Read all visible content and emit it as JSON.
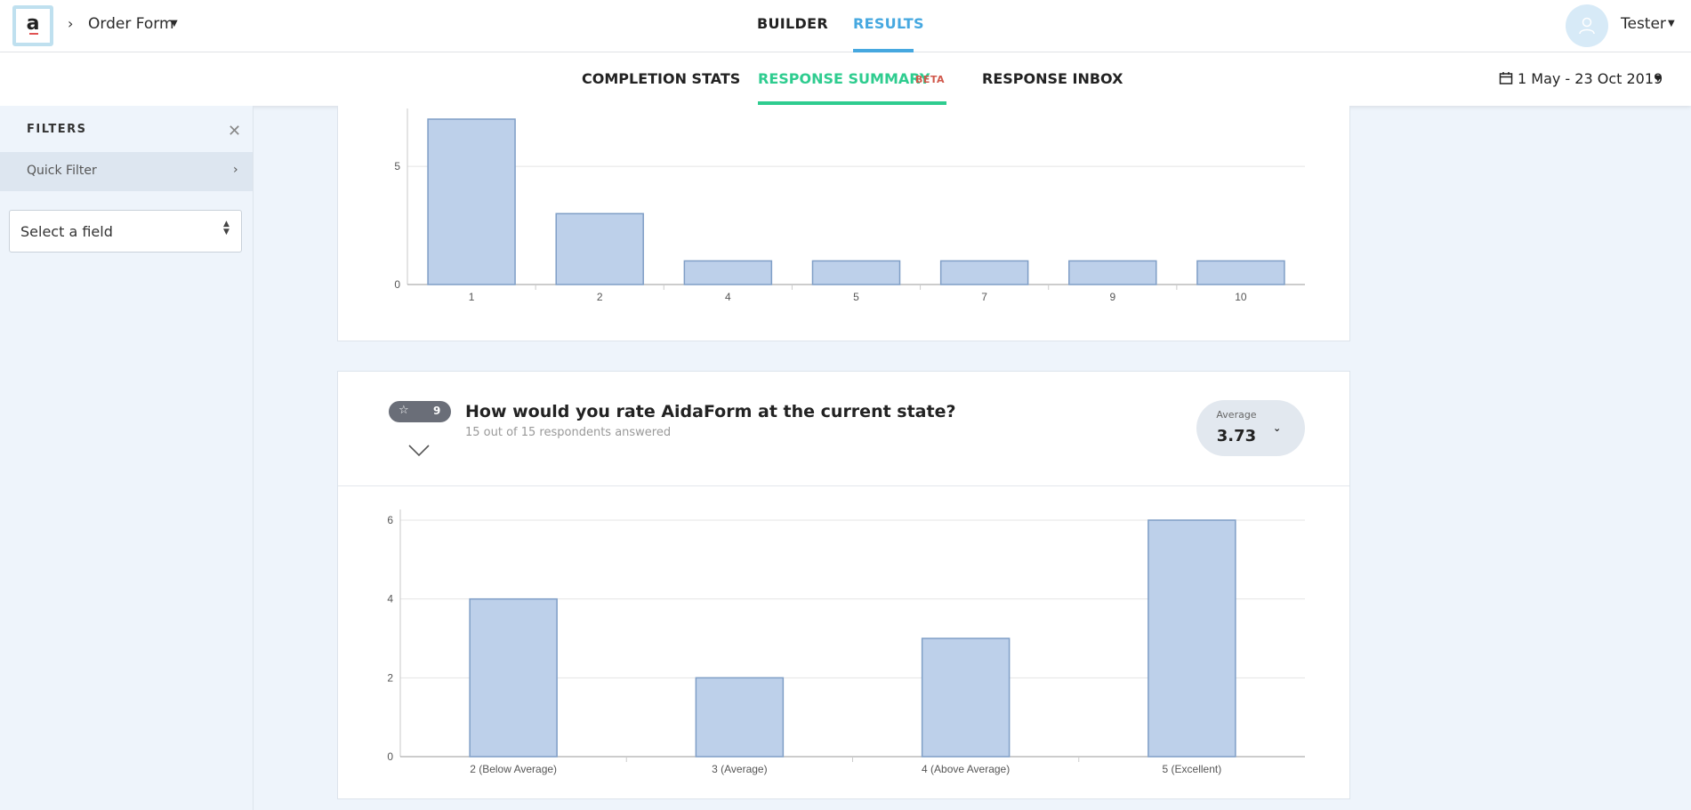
{
  "header": {
    "breadcrumb_arrow": "›",
    "form_name": "Order Form",
    "tabs": [
      {
        "label": "BUILDER",
        "active": false
      },
      {
        "label": "RESULTS",
        "active": true
      }
    ],
    "user_name": "Tester",
    "accent_color": "#46a8e0"
  },
  "subnav": {
    "tabs": [
      {
        "label": "COMPLETION STATS",
        "active": false
      },
      {
        "label": "RESPONSE SUMMARY",
        "active": true,
        "badge": "BETA"
      },
      {
        "label": "RESPONSE INBOX",
        "active": false
      }
    ],
    "date_range": "1 May - 23 Oct 2019",
    "active_color": "#2ecc8f"
  },
  "sidebar": {
    "title": "FILTERS",
    "close_icon": "close-icon",
    "quick_filter_label": "Quick Filter",
    "select_placeholder": "Select a field"
  },
  "question": {
    "number": "9",
    "type_icon": "star-icon",
    "title": "How would you rate AidaForm at the current state?",
    "subtitle": "15 out of 15 respondents answered",
    "average_label": "Average",
    "average_value": "3.73"
  },
  "chart_data": [
    {
      "type": "bar",
      "categories": [
        "1",
        "2",
        "4",
        "5",
        "7",
        "9",
        "10"
      ],
      "values": [
        7,
        3,
        1,
        1,
        1,
        1,
        1
      ],
      "y_ticks": [
        "0",
        "5"
      ],
      "ylim": [
        0,
        7
      ],
      "grid": true,
      "bar_color": "#bdd0ea",
      "bar_stroke": "#7f9ec6"
    },
    {
      "type": "bar",
      "categories": [
        "2 (Below Average)",
        "3 (Average)",
        "4 (Above Average)",
        "5 (Excellent)"
      ],
      "values": [
        4,
        2,
        3,
        6
      ],
      "y_ticks": [
        "0",
        "2",
        "4",
        "6"
      ],
      "ylim": [
        0,
        6
      ],
      "grid": true,
      "bar_color": "#bdd0ea",
      "bar_stroke": "#7f9ec6"
    }
  ]
}
